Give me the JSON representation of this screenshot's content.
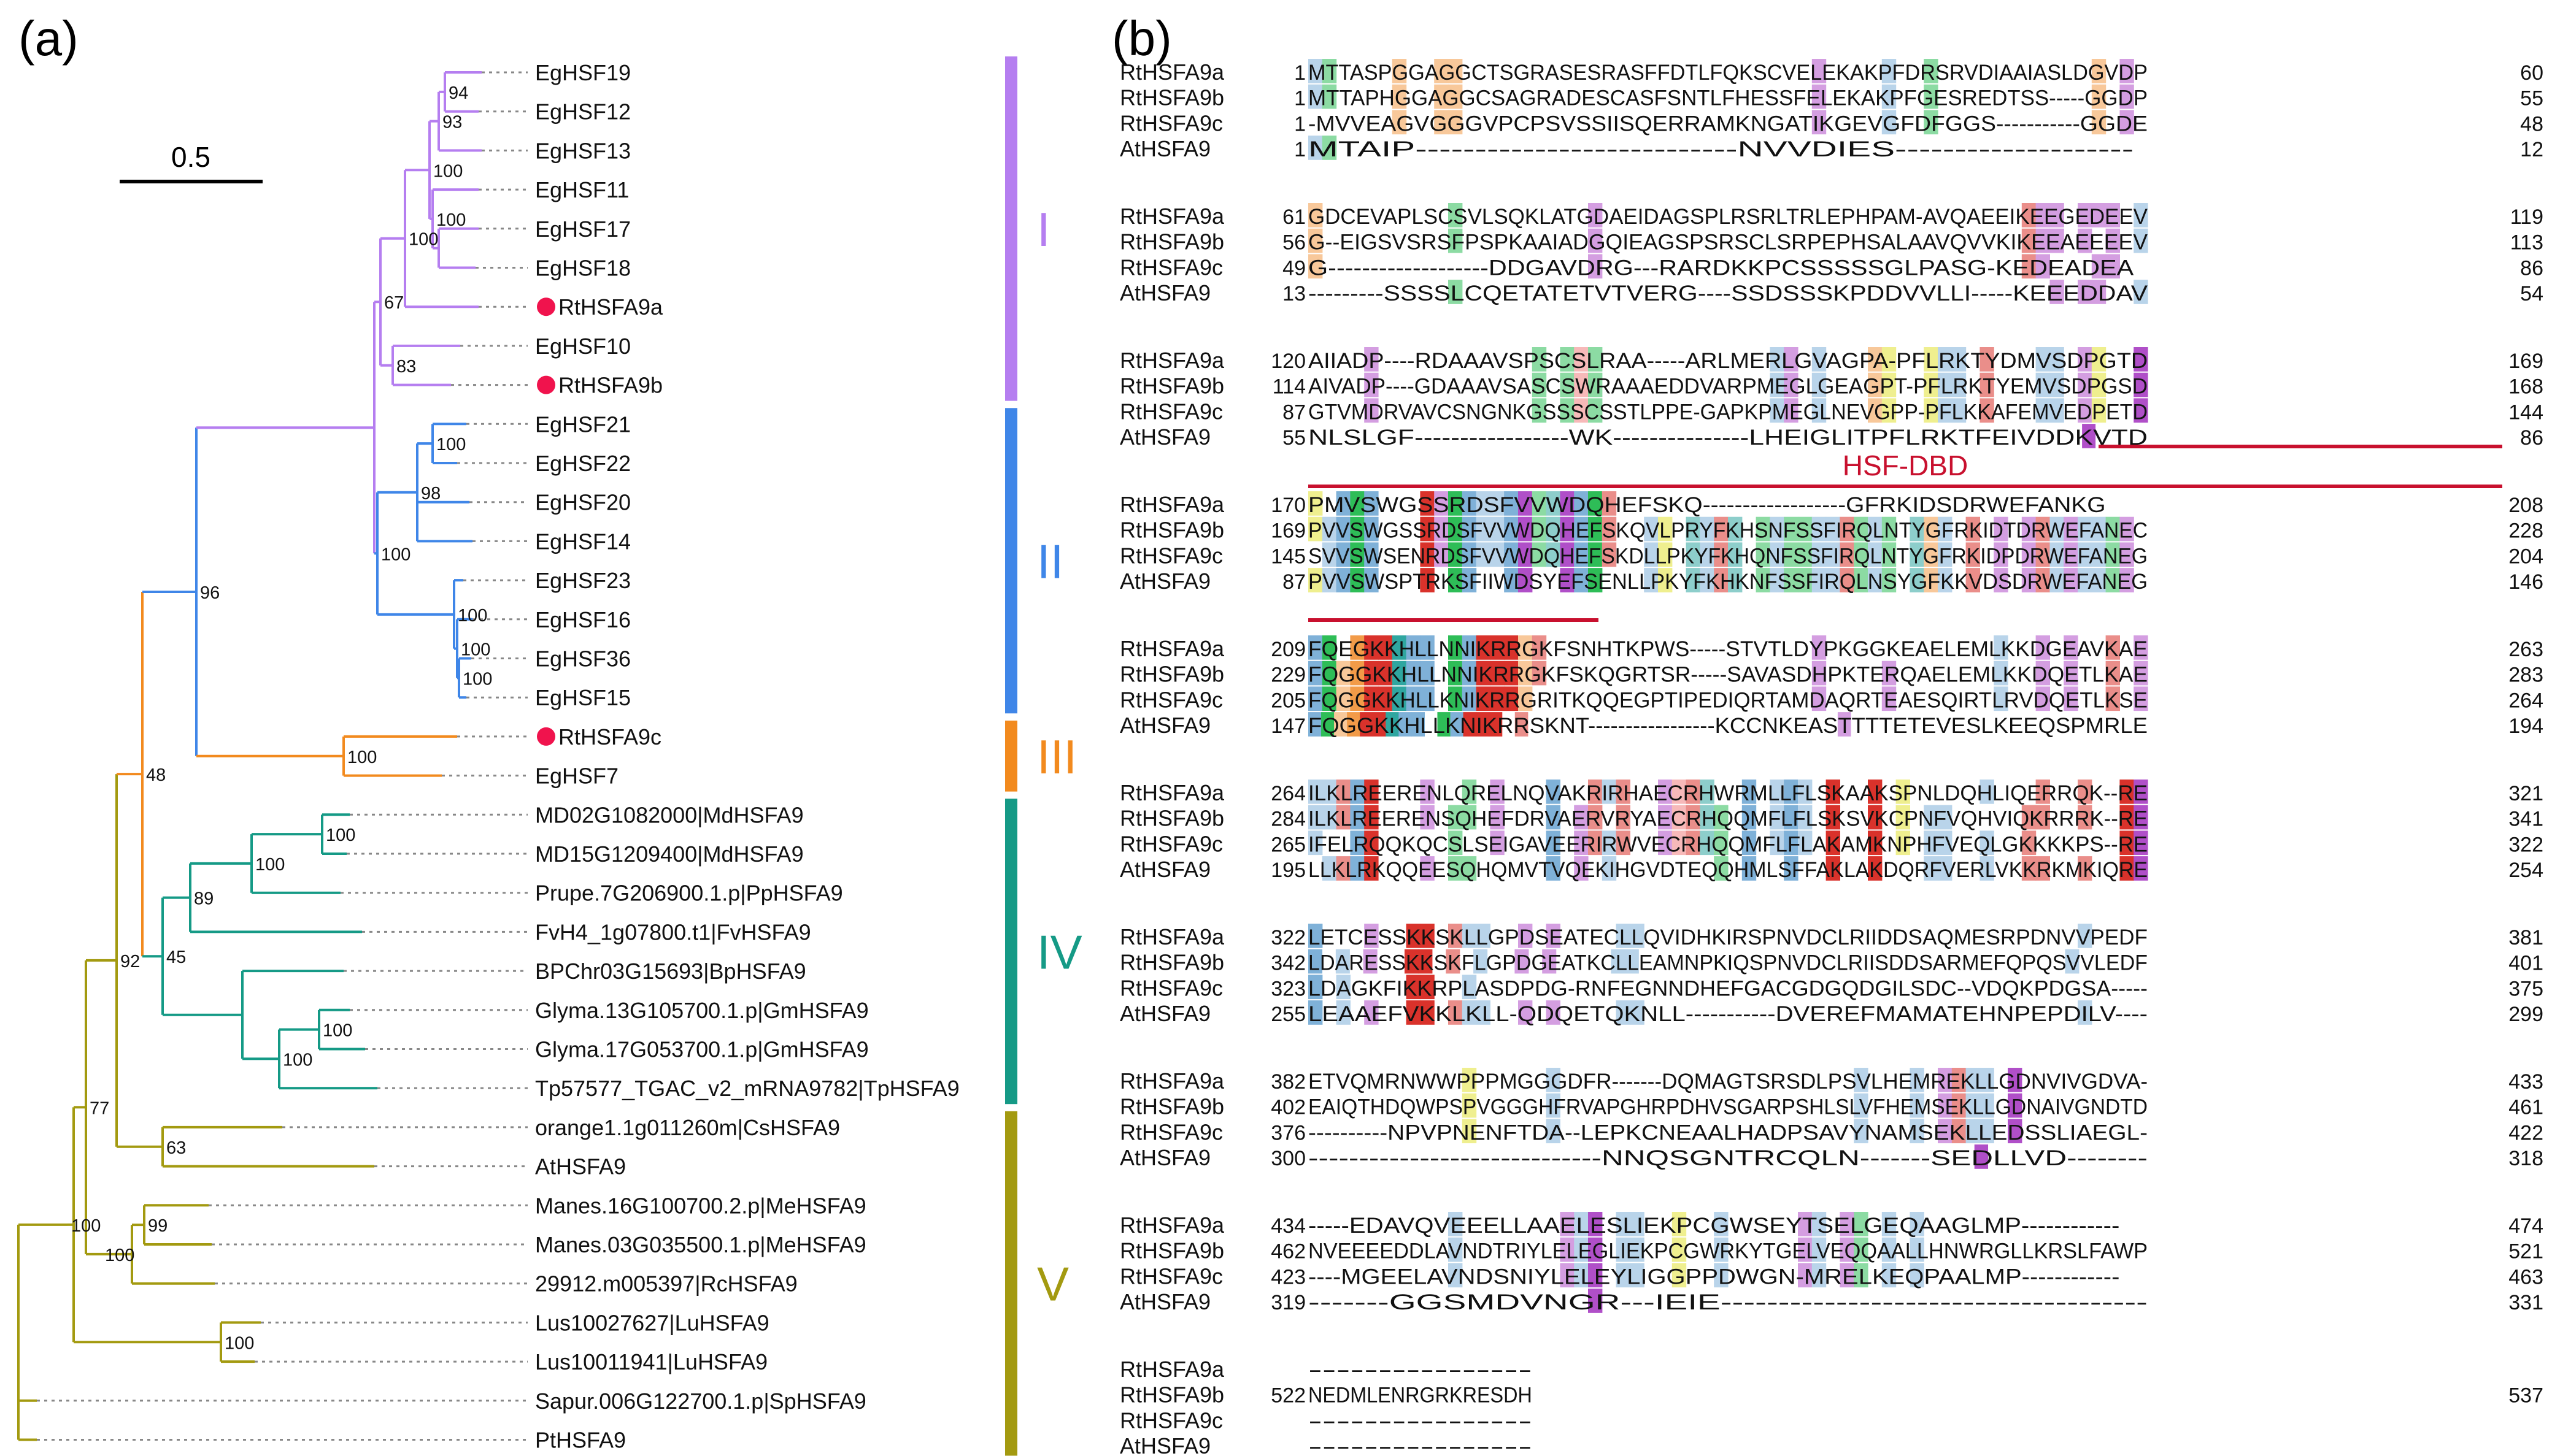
{
  "panel_a": {
    "label": "(a)",
    "scale_bar_label": "0.5",
    "colors": {
      "I": "#b57ef0",
      "II": "#3f86e8",
      "III": "#f28a1e",
      "IV": "#159a86",
      "V": "#a39a10",
      "marker": "#f0134d",
      "dots": "#888888"
    },
    "leaves": [
      {
        "label": "EgHSF19",
        "clade": "I"
      },
      {
        "label": "EgHSF12",
        "clade": "I"
      },
      {
        "label": "EgHSF13",
        "clade": "I"
      },
      {
        "label": "EgHSF11",
        "clade": "I"
      },
      {
        "label": "EgHSF17",
        "clade": "I"
      },
      {
        "label": "EgHSF18",
        "clade": "I"
      },
      {
        "label": "RtHSFA9a",
        "clade": "I",
        "marked": true
      },
      {
        "label": "EgHSF10",
        "clade": "I"
      },
      {
        "label": "RtHSFA9b",
        "clade": "I",
        "marked": true
      },
      {
        "label": "EgHSF21",
        "clade": "II"
      },
      {
        "label": "EgHSF22",
        "clade": "II"
      },
      {
        "label": "EgHSF20",
        "clade": "II"
      },
      {
        "label": "EgHSF14",
        "clade": "II"
      },
      {
        "label": "EgHSF23",
        "clade": "II"
      },
      {
        "label": "EgHSF16",
        "clade": "II"
      },
      {
        "label": "EgHSF36",
        "clade": "II"
      },
      {
        "label": "EgHSF15",
        "clade": "II"
      },
      {
        "label": "RtHSFA9c",
        "clade": "III",
        "marked": true
      },
      {
        "label": "EgHSF7",
        "clade": "III"
      },
      {
        "label": "MD02G1082000|MdHSFA9",
        "clade": "IV"
      },
      {
        "label": "MD15G1209400|MdHSFA9",
        "clade": "IV"
      },
      {
        "label": "Prupe.7G206900.1.p|PpHSFA9",
        "clade": "IV"
      },
      {
        "label": "FvH4_1g07800.t1|FvHSFA9",
        "clade": "IV"
      },
      {
        "label": "BPChr03G15693|BpHSFA9",
        "clade": "IV"
      },
      {
        "label": "Glyma.13G105700.1.p|GmHSFA9",
        "clade": "IV"
      },
      {
        "label": "Glyma.17G053700.1.p|GmHSFA9",
        "clade": "IV"
      },
      {
        "label": "Tp57577_TGAC_v2_mRNA9782|TpHSFA9",
        "clade": "IV"
      },
      {
        "label": "orange1.1g011260m|CsHSFA9",
        "clade": "V"
      },
      {
        "label": "AtHSFA9",
        "clade": "V"
      },
      {
        "label": "Manes.16G100700.2.p|MeHSFA9",
        "clade": "V"
      },
      {
        "label": "Manes.03G035500.1.p|MeHSFA9",
        "clade": "V"
      },
      {
        "label": "29912.m005397|RcHSFA9",
        "clade": "V"
      },
      {
        "label": "Lus10027627|LuHSFA9",
        "clade": "V"
      },
      {
        "label": "Lus10011941|LuHSFA9",
        "clade": "V"
      },
      {
        "label": "Sapur.006G122700.1.p|SpHSFA9",
        "clade": "V"
      },
      {
        "label": "PtHSFA9",
        "clade": "V"
      }
    ],
    "bootstraps": [
      "94",
      "93",
      "100",
      "100",
      "67",
      "83",
      "100",
      "98",
      "100",
      "100",
      "100",
      "100",
      "100",
      "96",
      "100",
      "48",
      "100",
      "100",
      "89",
      "45",
      "100",
      "100",
      "92",
      "63",
      "77",
      "99",
      "100",
      "100",
      "100"
    ],
    "clades": [
      {
        "name": "I",
        "color": "#b57ef0"
      },
      {
        "name": "II",
        "color": "#3f86e8"
      },
      {
        "name": "III",
        "color": "#f28a1e"
      },
      {
        "name": "IV",
        "color": "#159a86"
      },
      {
        "name": "V",
        "color": "#a39a10"
      }
    ]
  },
  "panel_b": {
    "label": "(b)",
    "domain_label": "HSF-DBD",
    "domain_color": "#c8102e",
    "blocks": [
      {
        "rows": [
          {
            "name": "RtHSFA9a",
            "start": "1",
            "seq": "MTTASPGGAGGCTSGRASESRASFFDTLFQKSCVELEKAKPFDRSRVDIAAIASLDGVDP",
            "end": "60"
          },
          {
            "name": "RtHSFA9b",
            "start": "1",
            "seq": "MTTAPHGGAGGCSAGRADESCASFSNTLFHESSFELEKAKPFGESREDTSS-----GGDP",
            "end": "55"
          },
          {
            "name": "RtHSFA9c",
            "start": "1",
            "seq": "-MVVEAGVGGGVPCPSVSSIISQERRAMKNGATIKGEVGFDFGGS-----------GGDE",
            "end": "48"
          },
          {
            "name": "AtHSFA9",
            "start": "1",
            "seq": "MTAIP---------------------------NVVDIES--------------------",
            "end": "12"
          }
        ]
      },
      {
        "rows": [
          {
            "name": "RtHSFA9a",
            "start": "61",
            "seq": "GDCEVAPLSCSVLSQKLATGDAEIDAGSPLRSRLTRLEPHPAM-AVQAEEIKEEGEDEEV",
            "end": "119"
          },
          {
            "name": "RtHSFA9b",
            "start": "56",
            "seq": "G--EIGSVSRSFPSPKAAIADGQIEAGSPSRSCLSRPEPHSALAAVQVVKIKEEAEEEEV",
            "end": "113"
          },
          {
            "name": "RtHSFA9c",
            "start": "49",
            "seq": "G-------------------DDGAVDRG---RARDKKPCSSSSSGLPASG-KEDEADEA",
            "end": "86"
          },
          {
            "name": "AtHSFA9",
            "start": "13",
            "seq": "---------SSSSLCQETATETVTVERG----SSDSSSKPDDVVLLI-----KEEEDDAV",
            "end": "54"
          }
        ]
      },
      {
        "rows": [
          {
            "name": "RtHSFA9a",
            "start": "120",
            "seq": "AIIADP----RDAAAVSPSCSLRAA-----ARLMERLGVAGPA-PFLRKTYDMVSDPGTD",
            "end": "169"
          },
          {
            "name": "RtHSFA9b",
            "start": "114",
            "seq": "AIVADP----GDAAAVSASCSWRAAAEDDVARPMEGLGEAGPT-PFLRKTYEMVSDPGSD",
            "end": "168"
          },
          {
            "name": "RtHSFA9c",
            "start": "87",
            "seq": "GTVMDRVAVCSNGNKGSSSCSSTLPPE-GAPKPMEGLNEVGPP-PFLKKAFEMVEDPETD",
            "end": "144"
          },
          {
            "name": "AtHSFA9",
            "start": "55",
            "seq": "NLSLGF-----------------WK---------------LHEIGLITPFLRKTFEIVDDKVTD",
            "end": "86"
          }
        ]
      },
      {
        "rows": [
          {
            "name": "RtHSFA9a",
            "start": "170",
            "seq": "PMVSWGSSRDSFVVWDQHEFSKQ------------------GFRKIDSDRWEFANKG",
            "end": "208"
          },
          {
            "name": "RtHSFA9b",
            "start": "169",
            "seq": "PVVSWGSSRDSFVVWDQHEFSKQVLPRYFKHSNFSSFIRQLNTYGFRKIDTDRWEFANEC",
            "end": "228"
          },
          {
            "name": "RtHSFA9c",
            "start": "145",
            "seq": "SVVSWSENRDSFVVWDQHEFSKDLLPKYFKHQNFSSFIRQLNTYGFRKIDPDRWEFANEG",
            "end": "204"
          },
          {
            "name": "AtHSFA9",
            "start": "87",
            "seq": "PVVSWSPTRKSFIIWDSYEFSENLLPKYFKHKNFSSFIRQLNSYGFKKVDSDRWEFANEG",
            "end": "146"
          }
        ]
      },
      {
        "rows": [
          {
            "name": "RtHSFA9a",
            "start": "209",
            "seq": "FQEGKKHLLNNIKRRGKFSNHTKPWS-----STVTLDYPKGGKEAELEMLKKDGEAVKAE",
            "end": "263"
          },
          {
            "name": "RtHSFA9b",
            "start": "229",
            "seq": "FQGGKKHLLNNIKRRGKFSKQGRTSR-----SAVASDHPKTERQAELEMLKKDQETLKAE",
            "end": "283"
          },
          {
            "name": "RtHSFA9c",
            "start": "205",
            "seq": "FQGGKKHLLKNIKRRGRITKQQEGPTIPEDIQRTAMDAQRTEAESQIRTLRVDQETLKSE",
            "end": "264"
          },
          {
            "name": "AtHSFA9",
            "start": "147",
            "seq": "FQGGKKHLLKNIKRRSKNT-----------------KCCNKEASTTTTETEVESLKEEQSPMRLE",
            "end": "194"
          }
        ]
      },
      {
        "rows": [
          {
            "name": "RtHSFA9a",
            "start": "264",
            "seq": "ILKLREERENLQRELNQVAKRIRHAECRHWRMLLFLSKAAKSPNLDQHLIQERRQK--RE",
            "end": "321"
          },
          {
            "name": "RtHSFA9b",
            "start": "284",
            "seq": "ILKLREERENSQHEFDRVAERVRYAECRHQQMFLFLSKSVKCPNFVQHVIQKRRRK--RE",
            "end": "341"
          },
          {
            "name": "RtHSFA9c",
            "start": "265",
            "seq": "IFELRQQKQCSLSEIGAVEERIRWVECRHQQMFLFLAKAMKNPHFVEQLGKKKKPS--RE",
            "end": "322"
          },
          {
            "name": "AtHSFA9",
            "start": "195",
            "seq": "LLKLRKQQEESQHQMVTVQEKIHGVDTEQQHMLSFFAKLAKDQRFVERLVKKRKMKIQRE",
            "end": "254"
          }
        ]
      },
      {
        "rows": [
          {
            "name": "RtHSFA9a",
            "start": "322",
            "seq": "LETCESSKKSKLLGPDSEATECLLQVIDHKIRSPNVDCLRIIDDSAQMESRPDNVVPEDF",
            "end": "381"
          },
          {
            "name": "RtHSFA9b",
            "start": "342",
            "seq": "LDARESSKKSKFLGPDGEATKCLLEAMNPKIQSPNVDCLRIISDDSARMEFQPQSVVLEDF",
            "end": "401"
          },
          {
            "name": "RtHSFA9c",
            "start": "323",
            "seq": "LDAGKFIKKRPLASDPDG-RNFEGNNDHEFGACGDGQDGILSDC--VDQKPDGSA-----",
            "end": "375"
          },
          {
            "name": "AtHSFA9",
            "start": "255",
            "seq": "LEAAEFVKKLKLL-QDQETQKNLL-----------DVEREFMAMATEHNPEPDILV----",
            "end": "299"
          }
        ]
      },
      {
        "rows": [
          {
            "name": "RtHSFA9a",
            "start": "382",
            "seq": "ETVQMRNWWPPPMGGGDFR-------DQMAGTSRSDLPSVLHEMREKLLGDNVIVGDVA-",
            "end": "433"
          },
          {
            "name": "RtHSFA9b",
            "start": "402",
            "seq": "EAIQTHDQWPSPVGGGHFRVAPGHRPDHVSGARPSHLSLVFHEMSEKLLGDNAIVGNDTD",
            "end": "461"
          },
          {
            "name": "RtHSFA9c",
            "start": "376",
            "seq": "----------NPVPNENFTDA--LEPKCNEAALHADPSAVYNAMSEKLLEDSSLIAEGL-",
            "end": "422"
          },
          {
            "name": "AtHSFA9",
            "start": "300",
            "seq": "-----------------------------NNQSGNTRCQLN-------SEDLLVD--------",
            "end": "318"
          }
        ]
      },
      {
        "rows": [
          {
            "name": "RtHSFA9a",
            "start": "434",
            "seq": "-----EDAVQVEEELLAAELESLIEKPCGWSEYTSELGEQAAGLMP------------",
            "end": "474"
          },
          {
            "name": "RtHSFA9b",
            "start": "462",
            "seq": "NVEEEEDDLAVNDTRIYLELEGLIEKPCGWRKYTGELVEQQAALLHNWRGLLKRSLFAWP",
            "end": "521"
          },
          {
            "name": "RtHSFA9c",
            "start": "423",
            "seq": "----MGEELAVNDSNIYLELEYLIGGPPDWGN-MRELKEQPAALMP------------",
            "end": "463"
          },
          {
            "name": "AtHSFA9",
            "start": "319",
            "seq": "-------GGSMDVNGR---IEIE-------------------------------------",
            "end": "331"
          }
        ]
      },
      {
        "rows": [
          {
            "name": "RtHSFA9a",
            "start": "",
            "seq": "----------------",
            "end": ""
          },
          {
            "name": "RtHSFA9b",
            "start": "522",
            "seq": "NEDMLENRGRKRESDH",
            "end": "537"
          },
          {
            "name": "RtHSFA9c",
            "start": "",
            "seq": "----------------",
            "end": ""
          },
          {
            "name": "AtHSFA9",
            "start": "",
            "seq": "----------------",
            "end": ""
          }
        ]
      }
    ]
  }
}
